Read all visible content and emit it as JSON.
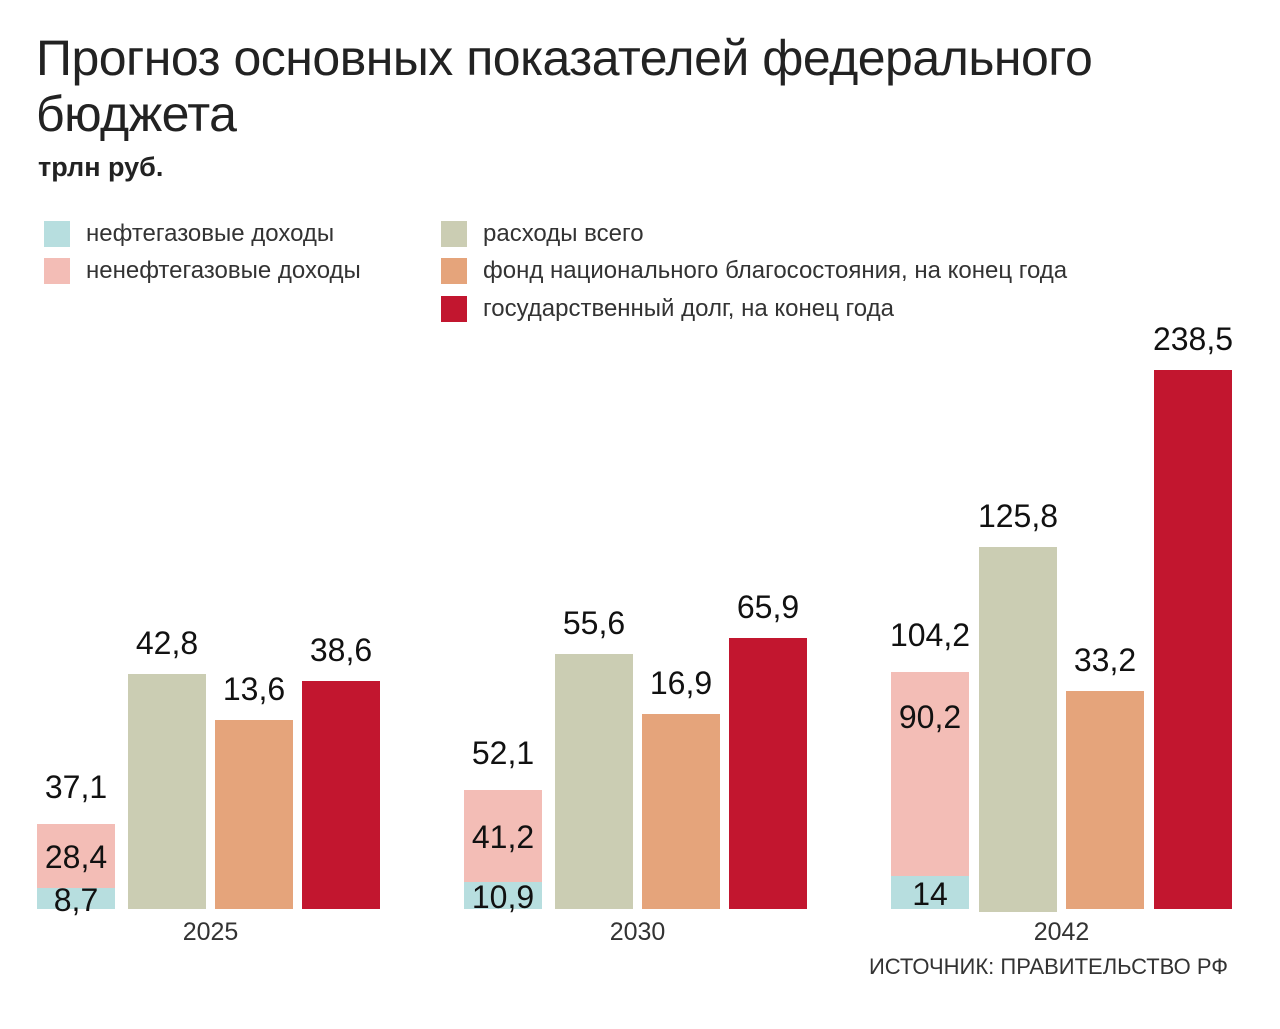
{
  "title": "Прогноз основных показателей федерального бюджета",
  "subtitle": "трлн руб.",
  "source": "ИСТОЧНИК: ПРАВИТЕЛЬСТВО РФ",
  "legend": [
    {
      "label": "нефтегазовые доходы",
      "color": "#b7dedf"
    },
    {
      "label": "ненефтегазовые доходы",
      "color": "#f3bdb6"
    },
    {
      "label": "расходы всего",
      "color": "#cbcdb3"
    },
    {
      "label": "фонд национального благосостояния, на конец года",
      "color": "#e5a47b"
    },
    {
      "label": "государственный долг, на конец года",
      "color": "#c2162f"
    }
  ],
  "chart_data": {
    "type": "bar",
    "title": "Прогноз основных показателей федерального бюджета",
    "subtitle": "трлн руб.",
    "categories": [
      "2025",
      "2030",
      "2042"
    ],
    "stacked_revenue": {
      "segments": [
        {
          "name": "нефтегазовые доходы",
          "values": [
            "8,7",
            "10,9",
            "14"
          ],
          "numeric": [
            8.7,
            10.9,
            14
          ]
        },
        {
          "name": "ненефтегазовые доходы",
          "values": [
            "28,4",
            "41,2",
            "90,2"
          ],
          "numeric": [
            28.4,
            41.2,
            90.2
          ]
        }
      ],
      "totals": [
        "37,1",
        "52,1",
        "104,2"
      ],
      "totals_numeric": [
        37.1,
        52.1,
        104.2
      ]
    },
    "series": [
      {
        "name": "расходы всего",
        "values": [
          "42,8",
          "55,6",
          "125,8"
        ],
        "numeric": [
          42.8,
          55.6,
          125.8
        ]
      },
      {
        "name": "фонд национального благосостояния, на конец года",
        "values": [
          "13,6",
          "16,9",
          "33,2"
        ],
        "numeric": [
          13.6,
          16.9,
          33.2
        ]
      },
      {
        "name": "государственный долг, на конец года",
        "values": [
          "38,6",
          "65,9",
          "238,5"
        ],
        "numeric": [
          38.6,
          65.9,
          238.5
        ]
      }
    ],
    "grid": false,
    "legend_position": "top",
    "scale": "not proportional"
  }
}
